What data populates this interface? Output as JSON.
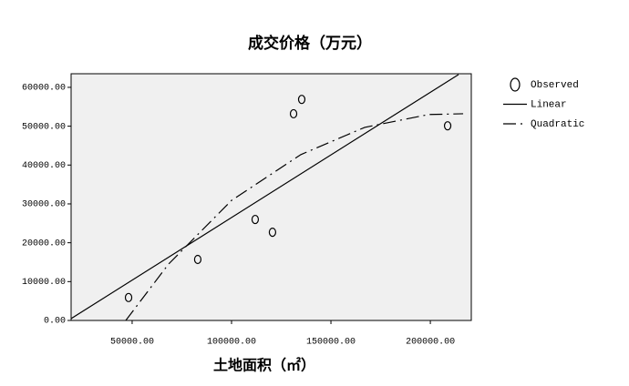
{
  "chart_data": {
    "type": "scatter",
    "title": "成交价格（万元）",
    "x_label": "土地面积（㎡）",
    "xlim": [
      19300,
      220600
    ],
    "ylim": [
      0,
      63500
    ],
    "xticks": [
      {
        "value": 50000,
        "label": "50000.00"
      },
      {
        "value": 100000,
        "label": "100000.00"
      },
      {
        "value": 150000,
        "label": "150000.00"
      },
      {
        "value": 200000,
        "label": "200000.00"
      }
    ],
    "yticks": [
      {
        "value": 0,
        "label": "0.00"
      },
      {
        "value": 10000,
        "label": "10000.00"
      },
      {
        "value": 20000,
        "label": "20000.00"
      },
      {
        "value": 30000,
        "label": "30000.00"
      },
      {
        "value": 40000,
        "label": "40000.00"
      },
      {
        "value": 50000,
        "label": "50000.00"
      },
      {
        "value": 60000,
        "label": "60000.00"
      }
    ],
    "legend": "right",
    "series": [
      {
        "name": "Observed",
        "marker": "circle",
        "color": "#000000",
        "x": [
          48200,
          83000,
          111900,
          120600,
          131200,
          135300,
          208700
        ],
        "values": [
          5900,
          15700,
          26000,
          22700,
          53200,
          56900,
          50100
        ]
      },
      {
        "name": "Linear",
        "style": "solid",
        "color": "#000000",
        "x": [
          19300,
          214200
        ],
        "values": [
          470,
          63300
        ]
      },
      {
        "name": "Quadratic",
        "style": "dashdot",
        "color": "#000000",
        "x": [
          46800,
          68300,
          100000,
          134900,
          167000,
          199100,
          216500
        ],
        "values": [
          0,
          14500,
          30900,
          42700,
          49700,
          53000,
          53200
        ]
      }
    ]
  }
}
